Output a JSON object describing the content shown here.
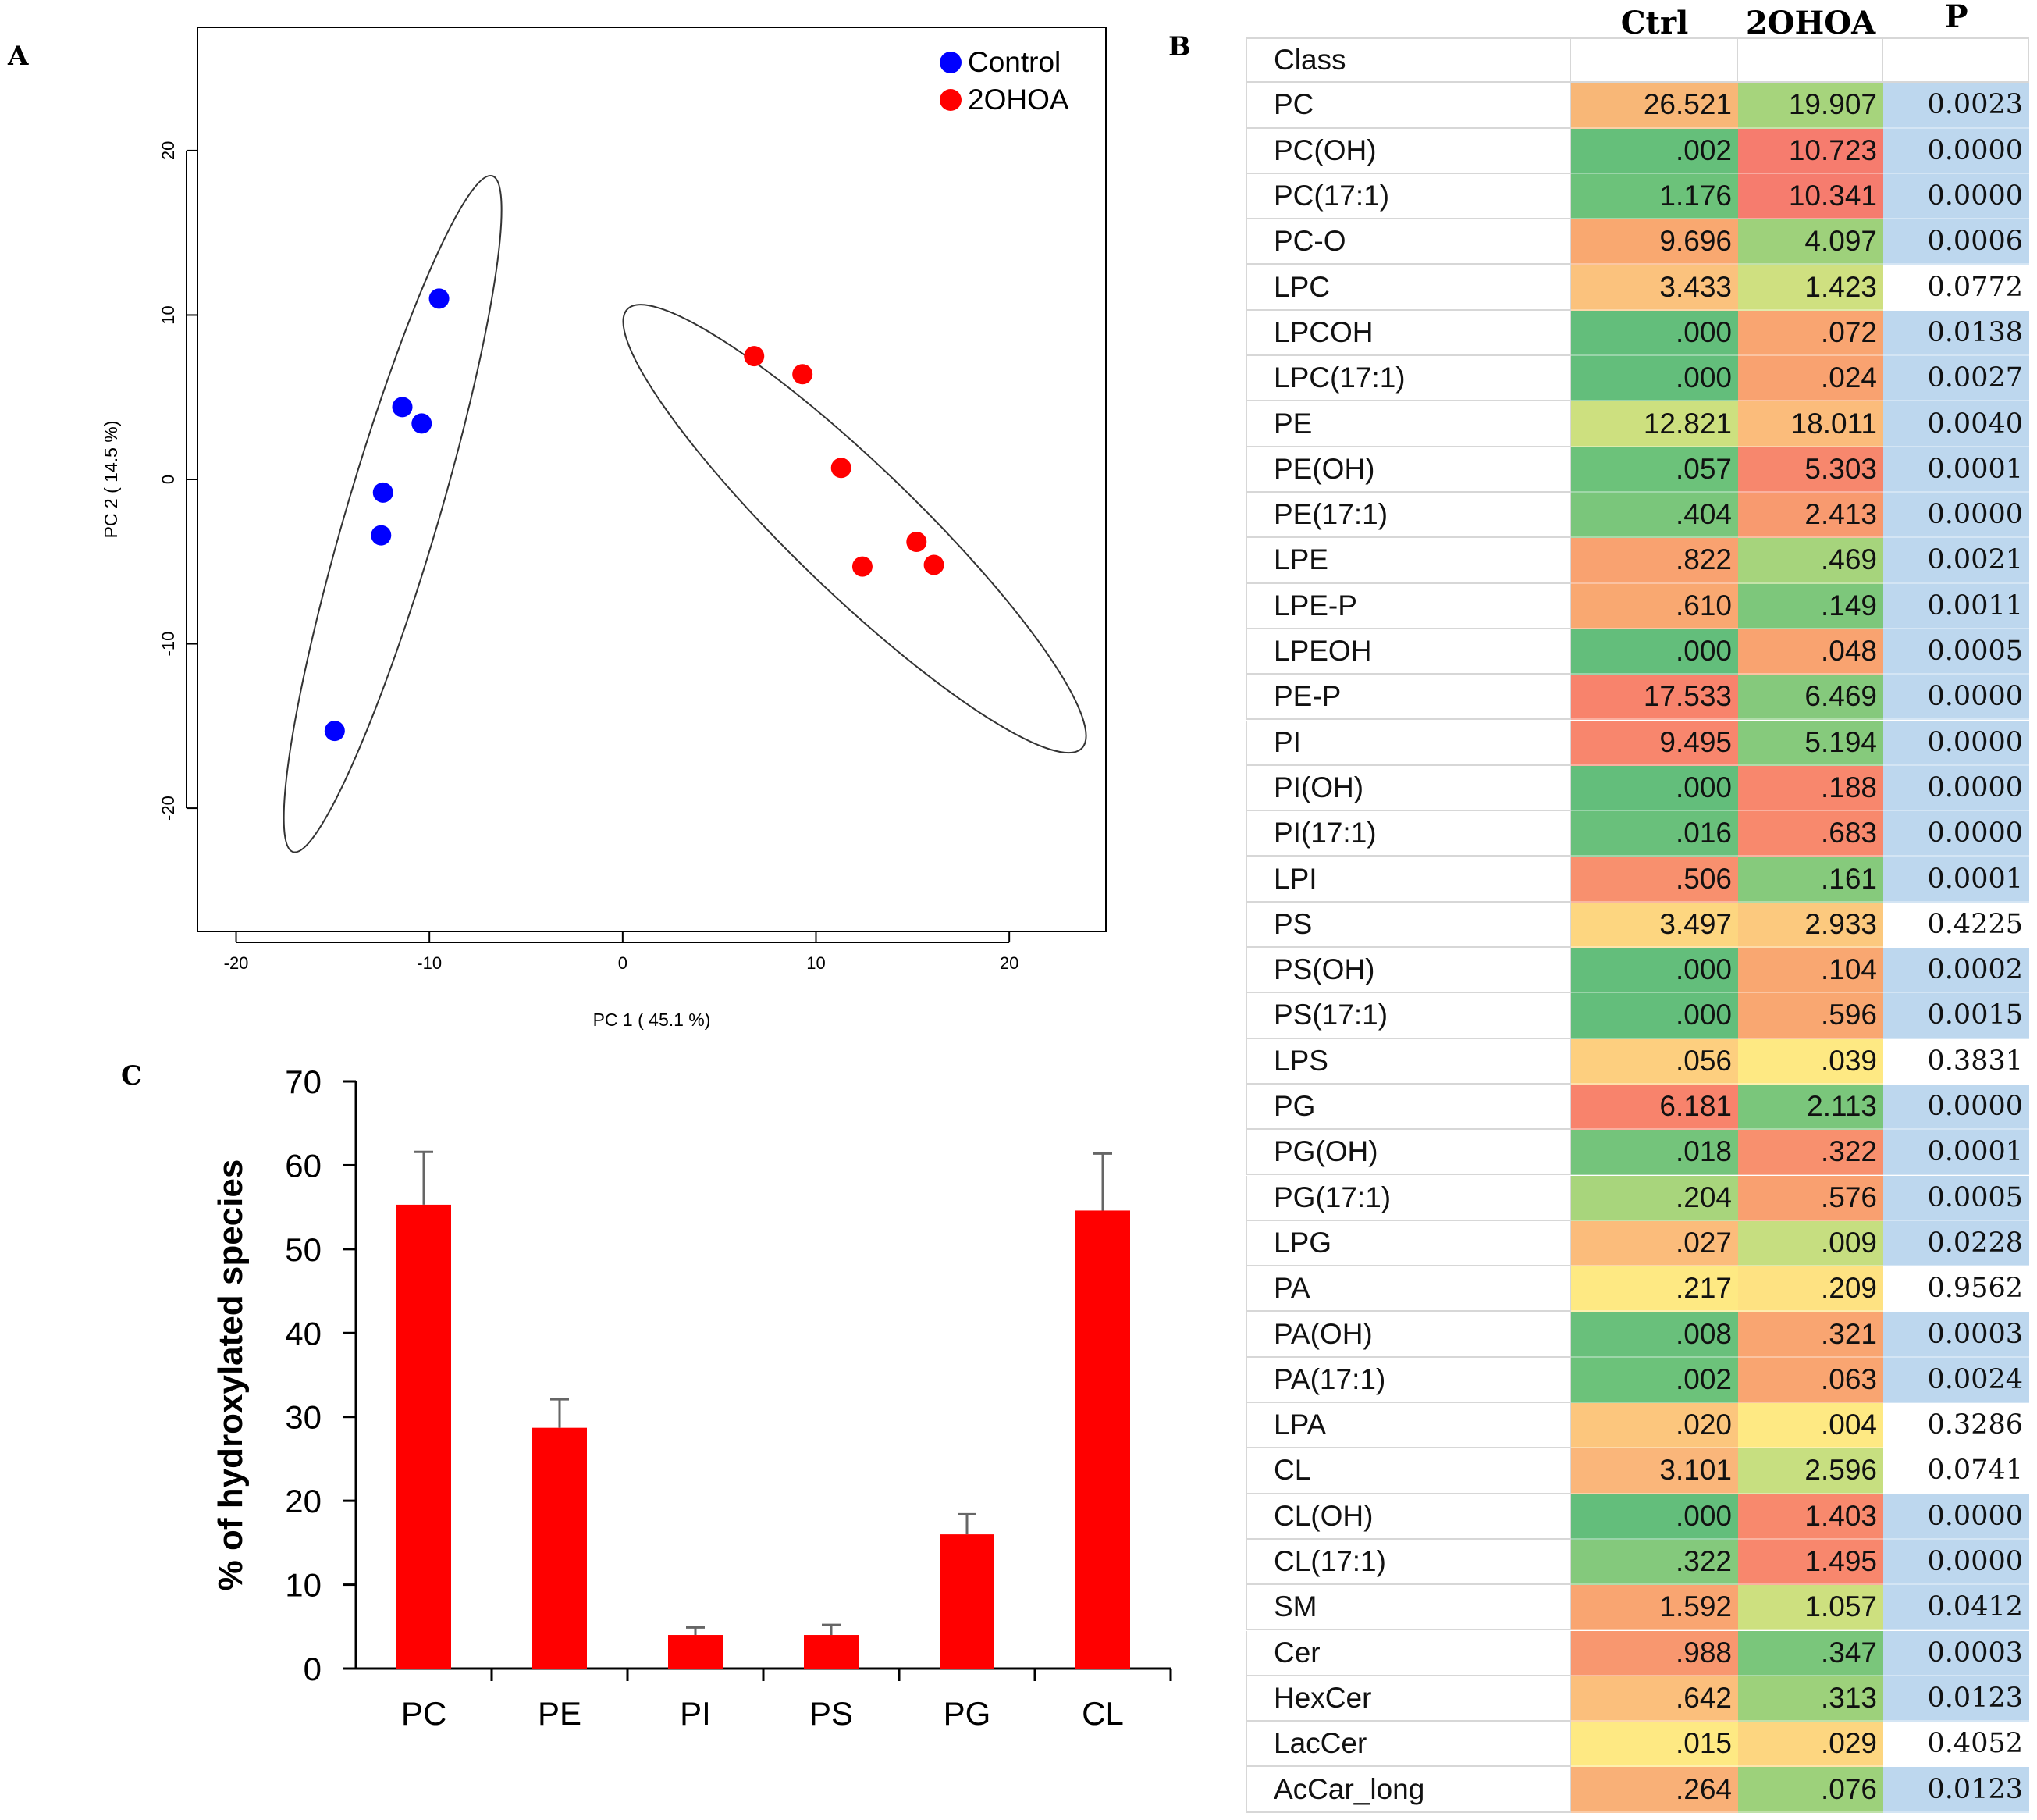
{
  "panel_labels": {
    "a": "A",
    "b": "B",
    "c": "C"
  },
  "chart_data": [
    {
      "type": "scatter",
      "panel": "A",
      "title": "",
      "xlabel": "PC 1 ( 45.1 %)",
      "ylabel": "PC 2 ( 14.5 %)",
      "xlim": [
        -22,
        25
      ],
      "ylim": [
        -27.5,
        27.5
      ],
      "xticks": [
        "-20",
        "-10",
        "0",
        "10",
        "20"
      ],
      "xtick_values": [
        -20,
        -10,
        0,
        10,
        20
      ],
      "yticks": [
        "-20",
        "-10",
        "0",
        "10",
        "20"
      ],
      "ytick_values": [
        -20,
        -10,
        0,
        10,
        20
      ],
      "legend_position": "top-right",
      "series": [
        {
          "name": "Control",
          "color": "#0000ff",
          "points": [
            [
              -9.5,
              11
            ],
            [
              -11.4,
              4.4
            ],
            [
              -10.4,
              3.4
            ],
            [
              -12.4,
              -0.8
            ],
            [
              -12.5,
              -3.4
            ],
            [
              -14.9,
              -15.3
            ]
          ]
        },
        {
          "name": "2OHOA",
          "color": "#ff0000",
          "points": [
            [
              6.8,
              7.5
            ],
            [
              9.3,
              6.4
            ],
            [
              11.3,
              0.7
            ],
            [
              12.4,
              -5.3
            ],
            [
              15.2,
              -3.8
            ],
            [
              16.1,
              -5.2
            ]
          ]
        }
      ],
      "ellipses": [
        {
          "group": "Control",
          "center": [
            -11.9,
            -2.1
          ],
          "semi_axes": [
            21.2,
            2.4
          ],
          "angle_deg": 76
        },
        {
          "group": "2OHOA",
          "center": [
            12.0,
            -3.0
          ],
          "semi_axes": [
            17.8,
            3.5
          ],
          "angle_deg": -49
        }
      ]
    },
    {
      "type": "table",
      "panel": "B",
      "columns": [
        "Class",
        "Ctrl",
        "2OHOA",
        "P"
      ],
      "header_label": "Class",
      "rows": [
        {
          "class": "PC",
          "ctrl": "26.521",
          "ohoa": "19.907",
          "p": "0.0023",
          "ctrl_color": "#f8b777",
          "ohoa_color": "#a6d47c",
          "p_color": "#bdd7ee"
        },
        {
          "class": "PC(OH)",
          "ctrl": ".002",
          "ohoa": "10.723",
          "p": "0.0000",
          "ctrl_color": "#65bf7a",
          "ohoa_color": "#f67c6e",
          "p_color": "#bdd7ee"
        },
        {
          "class": "PC(17:1)",
          "ctrl": "1.176",
          "ohoa": "10.341",
          "p": "0.0000",
          "ctrl_color": "#6cc27a",
          "ohoa_color": "#f67c6e",
          "p_color": "#bdd7ee"
        },
        {
          "class": "PC-O",
          "ctrl": "9.696",
          "ohoa": "4.097",
          "p": "0.0006",
          "ctrl_color": "#f9a870",
          "ohoa_color": "#9ed17b",
          "p_color": "#bdd7ee"
        },
        {
          "class": "LPC",
          "ctrl": "3.433",
          "ohoa": "1.423",
          "p": "0.0772",
          "ctrl_color": "#fbc27d",
          "ohoa_color": "#cfe080",
          "p_color": "#ffffff"
        },
        {
          "class": "LPCOH",
          "ctrl": ".000",
          "ohoa": ".072",
          "p": "0.0138",
          "ctrl_color": "#63be7b",
          "ohoa_color": "#f9a571",
          "p_color": "#bdd7ee"
        },
        {
          "class": "LPC(17:1)",
          "ctrl": ".000",
          "ohoa": ".024",
          "p": "0.0027",
          "ctrl_color": "#63be7b",
          "ohoa_color": "#f9a270",
          "p_color": "#bdd7ee"
        },
        {
          "class": "PE",
          "ctrl": "12.821",
          "ohoa": "18.011",
          "p": "0.0040",
          "ctrl_color": "#cde07f",
          "ohoa_color": "#fbbc7b",
          "p_color": "#bdd7ee"
        },
        {
          "class": "PE(OH)",
          "ctrl": ".057",
          "ohoa": "5.303",
          "p": "0.0001",
          "ctrl_color": "#6cc27a",
          "ohoa_color": "#f7876d",
          "p_color": "#bdd7ee"
        },
        {
          "class": "PE(17:1)",
          "ctrl": ".404",
          "ohoa": "2.413",
          "p": "0.0000",
          "ctrl_color": "#7ac67b",
          "ohoa_color": "#f89a6f",
          "p_color": "#bdd7ee"
        },
        {
          "class": "LPE",
          "ctrl": ".822",
          "ohoa": ".469",
          "p": "0.0021",
          "ctrl_color": "#f9a270",
          "ohoa_color": "#a6d47c",
          "p_color": "#bdd7ee"
        },
        {
          "class": "LPE-P",
          "ctrl": ".610",
          "ohoa": ".149",
          "p": "0.0011",
          "ctrl_color": "#f9a871",
          "ohoa_color": "#7dc77b",
          "p_color": "#bdd7ee"
        },
        {
          "class": "LPEOH",
          "ctrl": ".000",
          "ohoa": ".048",
          "p": "0.0005",
          "ctrl_color": "#63be7b",
          "ohoa_color": "#f9a370",
          "p_color": "#bdd7ee"
        },
        {
          "class": "PE-P",
          "ctrl": "17.533",
          "ohoa": "6.469",
          "p": "0.0000",
          "ctrl_color": "#f8836c",
          "ohoa_color": "#85c97c",
          "p_color": "#bdd7ee"
        },
        {
          "class": "PI",
          "ctrl": "9.495",
          "ohoa": "5.194",
          "p": "0.0000",
          "ctrl_color": "#f8866d",
          "ohoa_color": "#86ca7c",
          "p_color": "#bdd7ee"
        },
        {
          "class": "PI(OH)",
          "ctrl": ".000",
          "ohoa": ".188",
          "p": "0.0000",
          "ctrl_color": "#63be7b",
          "ohoa_color": "#f8876d",
          "p_color": "#bdd7ee"
        },
        {
          "class": "PI(17:1)",
          "ctrl": ".016",
          "ohoa": ".683",
          "p": "0.0000",
          "ctrl_color": "#69c07b",
          "ohoa_color": "#f8896d",
          "p_color": "#bdd7ee"
        },
        {
          "class": "LPI",
          "ctrl": ".506",
          "ohoa": ".161",
          "p": "0.0001",
          "ctrl_color": "#f8906e",
          "ohoa_color": "#86ca7c",
          "p_color": "#bdd7ee"
        },
        {
          "class": "PS",
          "ctrl": "3.497",
          "ohoa": "2.933",
          "p": "0.4225",
          "ctrl_color": "#fdd680",
          "ohoa_color": "#fcc97e",
          "p_color": "#ffffff"
        },
        {
          "class": "PS(OH)",
          "ctrl": ".000",
          "ohoa": ".104",
          "p": "0.0002",
          "ctrl_color": "#63be7b",
          "ohoa_color": "#f9a771",
          "p_color": "#bdd7ee"
        },
        {
          "class": "PS(17:1)",
          "ctrl": ".000",
          "ohoa": ".596",
          "p": "0.0015",
          "ctrl_color": "#63be7b",
          "ohoa_color": "#f9a771",
          "p_color": "#bdd7ee"
        },
        {
          "class": "LPS",
          "ctrl": ".056",
          "ohoa": ".039",
          "p": "0.3831",
          "ctrl_color": "#fdcf7f",
          "ohoa_color": "#fee983",
          "p_color": "#ffffff"
        },
        {
          "class": "PG",
          "ctrl": "6.181",
          "ohoa": "2.113",
          "p": "0.0000",
          "ctrl_color": "#f8836c",
          "ohoa_color": "#7ac67b",
          "p_color": "#bdd7ee"
        },
        {
          "class": "PG(OH)",
          "ctrl": ".018",
          "ohoa": ".322",
          "p": "0.0001",
          "ctrl_color": "#74c47b",
          "ohoa_color": "#f8906e",
          "p_color": "#bdd7ee"
        },
        {
          "class": "PG(17:1)",
          "ctrl": ".204",
          "ohoa": ".576",
          "p": "0.0005",
          "ctrl_color": "#a8d57c",
          "ohoa_color": "#f9a070",
          "p_color": "#bdd7ee"
        },
        {
          "class": "LPG",
          "ctrl": ".027",
          "ohoa": ".009",
          "p": "0.0228",
          "ctrl_color": "#fbbc7b",
          "ohoa_color": "#c6de80",
          "p_color": "#bdd7ee"
        },
        {
          "class": "PA",
          "ctrl": ".217",
          "ohoa": ".209",
          "p": "0.9562",
          "ctrl_color": "#fee983",
          "ohoa_color": "#fee282",
          "p_color": "#ffffff"
        },
        {
          "class": "PA(OH)",
          "ctrl": ".008",
          "ohoa": ".321",
          "p": "0.0003",
          "ctrl_color": "#69c07b",
          "ohoa_color": "#f9a571",
          "p_color": "#bdd7ee"
        },
        {
          "class": "PA(17:1)",
          "ctrl": ".002",
          "ohoa": ".063",
          "p": "0.0024",
          "ctrl_color": "#6cc27a",
          "ohoa_color": "#f9a571",
          "p_color": "#bdd7ee"
        },
        {
          "class": "LPA",
          "ctrl": ".020",
          "ohoa": ".004",
          "p": "0.3286",
          "ctrl_color": "#fcc67d",
          "ohoa_color": "#fee983",
          "p_color": "#ffffff"
        },
        {
          "class": "CL",
          "ctrl": "3.101",
          "ohoa": "2.596",
          "p": "0.0741",
          "ctrl_color": "#fab67a",
          "ohoa_color": "#c7df80",
          "p_color": "#ffffff"
        },
        {
          "class": "CL(OH)",
          "ctrl": ".000",
          "ohoa": "1.403",
          "p": "0.0000",
          "ctrl_color": "#63be7b",
          "ohoa_color": "#f8896d",
          "p_color": "#bdd7ee"
        },
        {
          "class": "CL(17:1)",
          "ctrl": ".322",
          "ohoa": "1.495",
          "p": "0.0000",
          "ctrl_color": "#84c97c",
          "ohoa_color": "#f8876d",
          "p_color": "#bdd7ee"
        },
        {
          "class": "SM",
          "ctrl": "1.592",
          "ohoa": "1.057",
          "p": "0.0412",
          "ctrl_color": "#f9a571",
          "ohoa_color": "#cde07f",
          "p_color": "#bdd7ee"
        },
        {
          "class": "Cer",
          "ctrl": ".988",
          "ohoa": ".347",
          "p": "0.0003",
          "ctrl_color": "#f8976f",
          "ohoa_color": "#7ac67b",
          "p_color": "#bdd7ee"
        },
        {
          "class": "HexCer",
          "ctrl": ".642",
          "ohoa": ".313",
          "p": "0.0123",
          "ctrl_color": "#fbbf7c",
          "ohoa_color": "#9dd17b",
          "p_color": "#bdd7ee"
        },
        {
          "class": "LacCer",
          "ctrl": ".015",
          "ohoa": ".029",
          "p": "0.4052",
          "ctrl_color": "#fee983",
          "ohoa_color": "#fdd680",
          "p_color": "#ffffff"
        },
        {
          "class": "AcCar_long",
          "ctrl": ".264",
          "ohoa": ".076",
          "p": "0.0123",
          "ctrl_color": "#f9b077",
          "ohoa_color": "#9dd17b",
          "p_color": "#bdd7ee"
        }
      ]
    },
    {
      "type": "bar",
      "panel": "C",
      "title": "",
      "xlabel": "",
      "ylabel": "% of hydroxylated species",
      "categories": [
        "PC",
        "PE",
        "PI",
        "PS",
        "PG",
        "CL"
      ],
      "values": [
        55.3,
        28.7,
        4.0,
        4.0,
        16.0,
        54.6
      ],
      "errors": [
        6.3,
        3.4,
        0.9,
        1.2,
        2.4,
        6.8
      ],
      "ylim": [
        0,
        70
      ],
      "yticks": [
        "0",
        "10",
        "20",
        "30",
        "40",
        "50",
        "60",
        "70"
      ],
      "ytick_values": [
        0,
        10,
        20,
        30,
        40,
        50,
        60,
        70
      ],
      "bar_color": "#ff0000"
    }
  ]
}
